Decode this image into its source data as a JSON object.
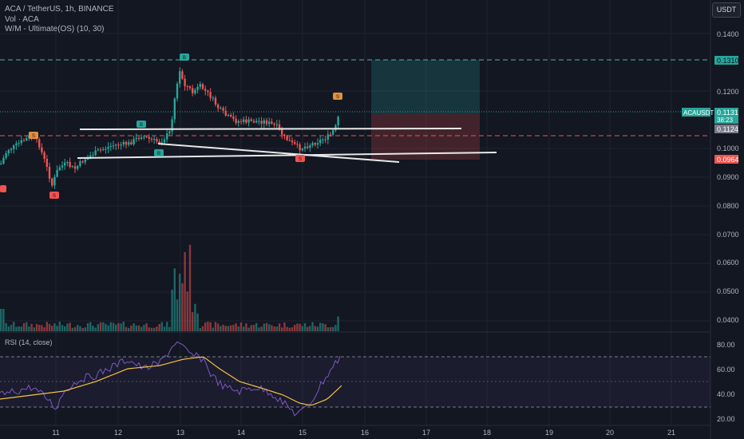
{
  "legend": {
    "symbol": "ACA / TetherUS, 1h, BINANCE",
    "volume": "Vol · ACA",
    "indicator": "W/M - Ultimate(OS) (10, 30)"
  },
  "currency_button": "USDT",
  "price_axis": {
    "ticks": [
      "0.1400",
      "0.1310",
      "0.1200",
      "0.1131",
      "0.1124",
      "0.1000",
      "0.0964",
      "0.0900",
      "0.0800",
      "0.0700",
      "0.0600",
      "0.0500",
      "0.0400"
    ],
    "symbol_badge": "ACAUSDT",
    "last_price": "0.1131",
    "countdown": "38:23",
    "level_labels": {
      "target": "0.1310",
      "entry": "0.1124",
      "stop": "0.0964"
    }
  },
  "time_axis": [
    "11",
    "12",
    "13",
    "14",
    "15",
    "16",
    "17",
    "18",
    "19",
    "20",
    "21"
  ],
  "rsi": {
    "label": "RSI (14, close)",
    "ticks": [
      "80.00",
      "60.00",
      "40.00",
      "20.00"
    ]
  },
  "colors": {
    "up": "#26a69a",
    "down": "#ef5350",
    "target_line": "#4db6ac",
    "stop_line": "#ef5350",
    "rsi_line": "#7e57c2",
    "rsi_ma": "#f5c242",
    "background": "#131722"
  },
  "markers": {
    "buy": "B",
    "sell": "S"
  }
}
